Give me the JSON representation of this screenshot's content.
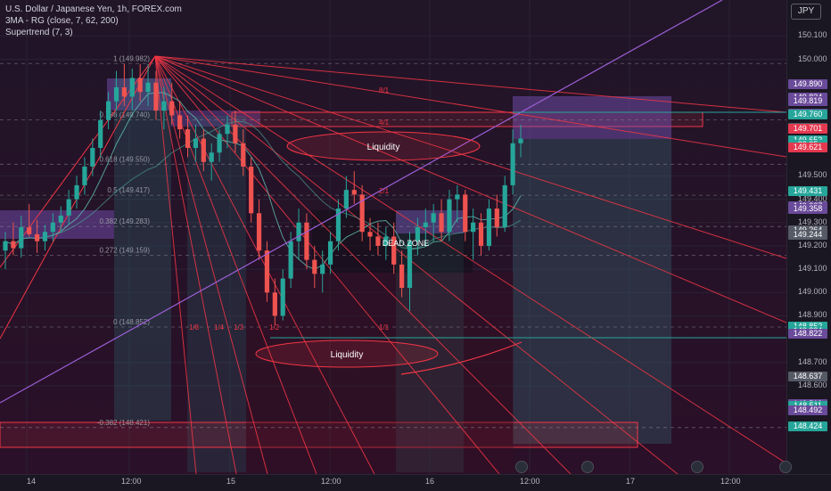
{
  "legend": {
    "symbol": "U.S. Dollar / Japanese Yen, 1h, FOREX.com",
    "indicator1": "3MA - RG (close, 7, 62, 200)",
    "indicator2": "Supertrend (7, 3)"
  },
  "currency": "JPY",
  "price_axis": [
    {
      "label": "150.100",
      "price": 150.1
    },
    {
      "label": "150.000",
      "price": 150.0
    },
    {
      "label": "149.500",
      "price": 149.5
    },
    {
      "label": "149.400",
      "price": 149.4
    },
    {
      "label": "149.300",
      "price": 149.3
    },
    {
      "label": "149.200",
      "price": 149.2
    },
    {
      "label": "149.100",
      "price": 149.1
    },
    {
      "label": "149.000",
      "price": 149.0
    },
    {
      "label": "148.900",
      "price": 148.9
    },
    {
      "label": "148.700",
      "price": 148.7
    },
    {
      "label": "148.600",
      "price": 148.6
    }
  ],
  "price_tags": [
    {
      "label": "149.890",
      "price": 149.89,
      "color": "#6a4a9a"
    },
    {
      "label": "149.834",
      "price": 149.834,
      "color": "#6a4a9a"
    },
    {
      "label": "149.819",
      "price": 149.819,
      "color": "#6a4a9a"
    },
    {
      "label": "149.765",
      "price": 149.765,
      "color": "#6a4a9a"
    },
    {
      "label": "149.760",
      "price": 149.76,
      "color": "#26a69a"
    },
    {
      "label": "149.703",
      "price": 149.703,
      "color": "#555a66"
    },
    {
      "label": "149.701",
      "price": 149.701,
      "color": "#e53950"
    },
    {
      "label": "149.652",
      "price": 149.652,
      "color": "#26a69a"
    },
    {
      "label": "22:35",
      "price": 149.63,
      "color": "#26a69a"
    },
    {
      "label": "149.621",
      "price": 149.621,
      "color": "#e53950"
    },
    {
      "label": "149.431",
      "price": 149.431,
      "color": "#26a69a"
    },
    {
      "label": "149.367",
      "price": 149.367,
      "color": "#6a4a9a"
    },
    {
      "label": "149.358",
      "price": 149.358,
      "color": "#6a4a9a"
    },
    {
      "label": "149.264",
      "price": 149.264,
      "color": "#555a66"
    },
    {
      "label": "149.244",
      "price": 149.244,
      "color": "#555a66"
    },
    {
      "label": "148.852",
      "price": 148.852,
      "color": "#26a69a"
    },
    {
      "label": "148.834",
      "price": 148.834,
      "color": "#26a69a"
    },
    {
      "label": "148.822",
      "price": 148.822,
      "color": "#6a4a9a"
    },
    {
      "label": "148.637",
      "price": 148.637,
      "color": "#555a66"
    },
    {
      "label": "148.519",
      "price": 148.519,
      "color": "#6a4a9a"
    },
    {
      "label": "148.512",
      "price": 148.512,
      "color": "#26a69a"
    },
    {
      "label": "148.511",
      "price": 148.511,
      "color": "#26a69a"
    },
    {
      "label": "148.492",
      "price": 148.492,
      "color": "#6a4a9a"
    },
    {
      "label": "148.424",
      "price": 148.424,
      "color": "#26a69a"
    }
  ],
  "time_axis": [
    {
      "label": "14"
    },
    {
      "label": "12:00"
    },
    {
      "label": "15"
    },
    {
      "label": "12:00"
    },
    {
      "label": "16"
    },
    {
      "label": "12:00"
    },
    {
      "label": "17"
    },
    {
      "label": "12:00"
    }
  ],
  "fib_levels": [
    {
      "label": "1 (149.982)",
      "price": 149.982
    },
    {
      "label": "0.786 (149.740)",
      "price": 149.74
    },
    {
      "label": "0.618 (149.550)",
      "price": 149.55
    },
    {
      "label": "0.5 (149.417)",
      "price": 149.417
    },
    {
      "label": "0.382 (149.283)",
      "price": 149.283
    },
    {
      "label": "0.272 (149.159)",
      "price": 149.159
    },
    {
      "label": "0 (148.852)",
      "price": 148.852
    },
    {
      "label": "-0.382 (148.421)",
      "price": 148.421
    }
  ],
  "fan_labels": [
    "8/1",
    "4/1",
    "2/1",
    "1/1",
    "1/2",
    "1/3",
    "1/4",
    "1/8"
  ],
  "annotations": {
    "liquidity_top": "Liquidity",
    "liquidity_bottom": "Liquidity",
    "dead_zone": "DEAD ZONE"
  },
  "colors": {
    "background": "#1c1426",
    "bullish": "#26a69a",
    "bearish": "#ef5350",
    "fan_lines": "#f23645",
    "trend_line": "#9c5fd6",
    "zone_purple": "#7e57c2"
  },
  "candles": [
    [
      149.18,
      149.26,
      149.1,
      149.22
    ],
    [
      149.22,
      149.3,
      149.16,
      149.19
    ],
    [
      149.19,
      149.33,
      149.15,
      149.28
    ],
    [
      149.28,
      149.38,
      149.24,
      149.25
    ],
    [
      149.25,
      149.31,
      149.17,
      149.22
    ],
    [
      149.22,
      149.29,
      149.18,
      149.26
    ],
    [
      149.26,
      149.34,
      149.22,
      149.3
    ],
    [
      149.3,
      149.37,
      149.26,
      149.33
    ],
    [
      149.33,
      149.44,
      149.29,
      149.4
    ],
    [
      149.4,
      149.5,
      149.36,
      149.46
    ],
    [
      149.46,
      149.58,
      149.42,
      149.54
    ],
    [
      149.54,
      149.66,
      149.5,
      149.62
    ],
    [
      149.62,
      149.78,
      149.58,
      149.74
    ],
    [
      149.74,
      149.86,
      149.7,
      149.82
    ],
    [
      149.82,
      149.95,
      149.78,
      149.88
    ],
    [
      149.88,
      149.98,
      149.8,
      149.84
    ],
    [
      149.84,
      149.96,
      149.78,
      149.92
    ],
    [
      149.92,
      149.98,
      149.82,
      149.86
    ],
    [
      149.86,
      149.98,
      149.8,
      149.9
    ],
    [
      149.9,
      149.95,
      149.74,
      149.78
    ],
    [
      149.78,
      149.88,
      149.7,
      149.82
    ],
    [
      149.82,
      149.9,
      149.72,
      149.76
    ],
    [
      149.76,
      149.82,
      149.66,
      149.7
    ],
    [
      149.7,
      149.76,
      149.58,
      149.62
    ],
    [
      149.62,
      149.72,
      149.56,
      149.66
    ],
    [
      149.66,
      149.7,
      149.52,
      149.56
    ],
    [
      149.56,
      149.64,
      149.48,
      149.6
    ],
    [
      149.6,
      149.7,
      149.56,
      149.68
    ],
    [
      149.68,
      149.76,
      149.62,
      149.72
    ],
    [
      149.72,
      149.78,
      149.6,
      149.64
    ],
    [
      149.64,
      149.7,
      149.5,
      149.54
    ],
    [
      149.54,
      149.58,
      149.3,
      149.34
    ],
    [
      149.34,
      149.4,
      149.14,
      149.18
    ],
    [
      149.18,
      149.22,
      148.96,
      149.0
    ],
    [
      149.0,
      149.06,
      148.86,
      148.9
    ],
    [
      148.9,
      149.1,
      148.88,
      149.06
    ],
    [
      149.06,
      149.26,
      149.02,
      149.22
    ],
    [
      149.22,
      149.36,
      149.14,
      149.3
    ],
    [
      149.3,
      149.34,
      149.1,
      149.14
    ],
    [
      149.14,
      149.2,
      149.02,
      149.08
    ],
    [
      149.08,
      149.18,
      149.0,
      149.12
    ],
    [
      149.12,
      149.26,
      149.08,
      149.22
    ],
    [
      149.22,
      149.4,
      149.18,
      149.36
    ],
    [
      149.36,
      149.5,
      149.32,
      149.44
    ],
    [
      149.44,
      149.52,
      149.38,
      149.42
    ],
    [
      149.42,
      149.46,
      149.22,
      149.26
    ],
    [
      149.26,
      149.32,
      149.18,
      149.24
    ],
    [
      149.24,
      149.3,
      149.16,
      149.2
    ],
    [
      149.2,
      149.28,
      149.14,
      149.24
    ],
    [
      149.24,
      149.3,
      149.08,
      149.12
    ],
    [
      149.12,
      149.18,
      148.98,
      149.02
    ],
    [
      149.02,
      149.26,
      148.92,
      149.22
    ],
    [
      149.22,
      149.32,
      149.16,
      149.28
    ],
    [
      149.28,
      149.36,
      149.2,
      149.3
    ],
    [
      149.3,
      149.38,
      149.22,
      149.34
    ],
    [
      149.34,
      149.4,
      149.22,
      149.26
    ],
    [
      149.26,
      149.44,
      149.22,
      149.4
    ],
    [
      149.4,
      149.46,
      149.3,
      149.42
    ],
    [
      149.42,
      149.44,
      149.22,
      149.26
    ],
    [
      149.26,
      149.36,
      149.14,
      149.3
    ],
    [
      149.3,
      149.34,
      149.16,
      149.2
    ],
    [
      149.2,
      149.4,
      149.18,
      149.36
    ],
    [
      149.36,
      149.42,
      149.24,
      149.28
    ],
    [
      149.28,
      149.5,
      149.26,
      149.46
    ],
    [
      149.46,
      149.7,
      149.42,
      149.64
    ],
    [
      149.64,
      149.72,
      149.58,
      149.66
    ]
  ]
}
